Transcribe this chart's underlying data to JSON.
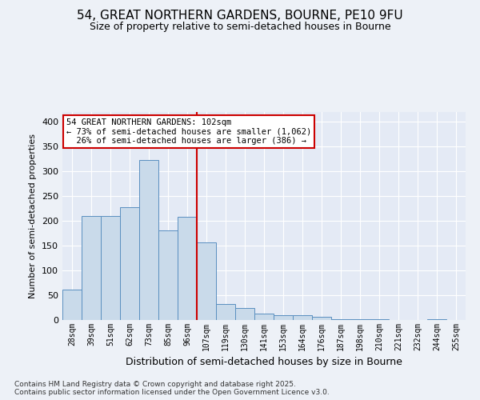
{
  "title_line1": "54, GREAT NORTHERN GARDENS, BOURNE, PE10 9FU",
  "title_line2": "Size of property relative to semi-detached houses in Bourne",
  "xlabel": "Distribution of semi-detached houses by size in Bourne",
  "ylabel": "Number of semi-detached properties",
  "categories": [
    "28sqm",
    "39sqm",
    "51sqm",
    "62sqm",
    "73sqm",
    "85sqm",
    "96sqm",
    "107sqm",
    "119sqm",
    "130sqm",
    "141sqm",
    "153sqm",
    "164sqm",
    "176sqm",
    "187sqm",
    "198sqm",
    "210sqm",
    "221sqm",
    "232sqm",
    "244sqm",
    "255sqm"
  ],
  "values": [
    62,
    210,
    210,
    227,
    323,
    181,
    209,
    157,
    33,
    25,
    13,
    9,
    9,
    6,
    2,
    1,
    1,
    0,
    0,
    1,
    0
  ],
  "bar_color": "#c9daea",
  "bar_edge_color": "#5a8fc0",
  "vline_index": 7,
  "annotation_text": "54 GREAT NORTHERN GARDENS: 102sqm\n← 73% of semi-detached houses are smaller (1,062)\n  26% of semi-detached houses are larger (386) →",
  "annotation_box_color": "#ffffff",
  "annotation_box_edge": "#cc0000",
  "vline_color": "#cc0000",
  "ylim": [
    0,
    420
  ],
  "yticks": [
    0,
    50,
    100,
    150,
    200,
    250,
    300,
    350,
    400
  ],
  "footnote": "Contains HM Land Registry data © Crown copyright and database right 2025.\nContains public sector information licensed under the Open Government Licence v3.0.",
  "bg_color": "#edf1f7",
  "plot_bg_color": "#e4eaf5",
  "grid_color": "#ffffff"
}
